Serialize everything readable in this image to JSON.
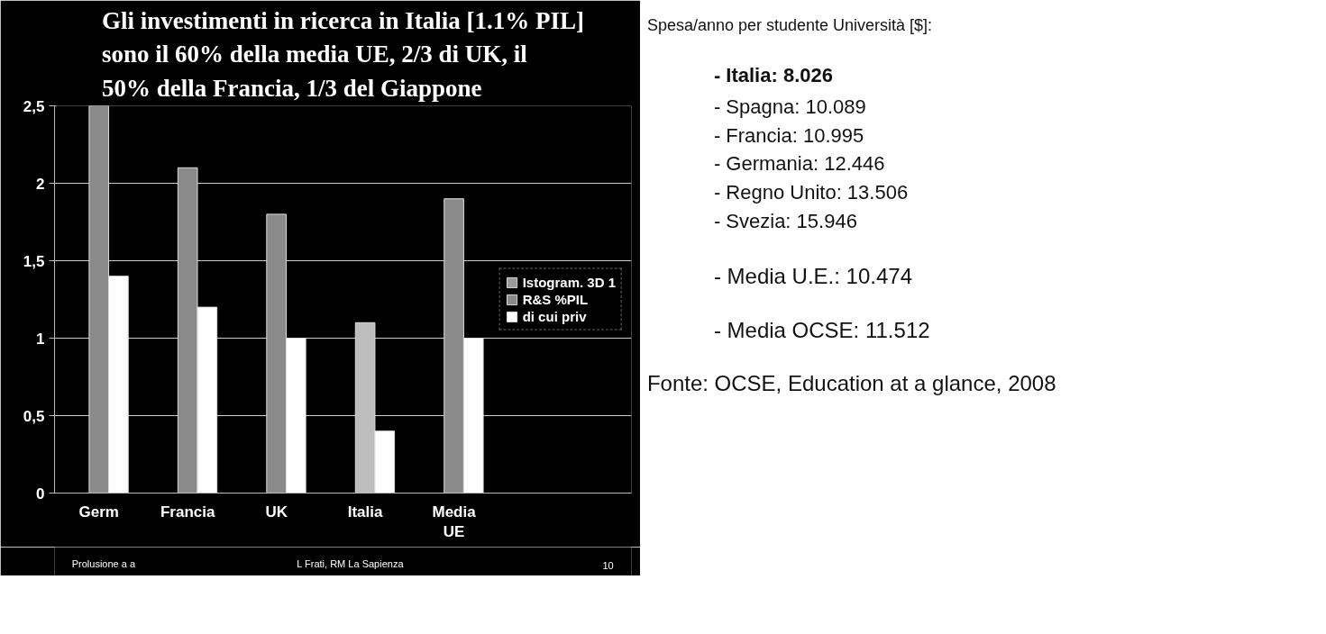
{
  "chart_data": [
    {
      "type": "bar",
      "title": "Gli investimenti in ricerca in Italia [1.1% PIL]\nsono il 60% della media UE, 2/3 di UK, il\n50% della Francia, 1/3 del Giappone",
      "categories": [
        "Germ",
        "Francia",
        "UK",
        "Italia",
        "Media\nUE"
      ],
      "series": [
        {
          "name": "Istogram. 3D 1",
          "color": "#9a9a9a",
          "values": [
            null,
            null,
            null,
            null,
            null
          ]
        },
        {
          "name": "R&S %PIL",
          "color": "#8a8a8a",
          "colors": [
            "#8a8a8a",
            "#8a8a8a",
            "#8a8a8a",
            "#bdbdbd",
            "#8a8a8a"
          ],
          "values": [
            2.5,
            2.1,
            1.8,
            1.1,
            1.9
          ]
        },
        {
          "name": "di cui priv",
          "color": "#ffffff",
          "values": [
            1.4,
            1.2,
            1.0,
            0.4,
            1.0
          ]
        }
      ],
      "ylim": [
        0,
        2.5
      ],
      "yticks": [
        {
          "value": 0,
          "label": "0"
        },
        {
          "value": 0.5,
          "label": "0,5"
        },
        {
          "value": 1,
          "label": "1"
        },
        {
          "value": 1.5,
          "label": "1,5"
        },
        {
          "value": 2,
          "label": "2"
        },
        {
          "value": 2.5,
          "label": "2,5"
        }
      ],
      "grid": "y",
      "legend": "right",
      "annotations": [
        "Prolusione a a",
        "L Frati, RM La Sapienza",
        "10"
      ]
    },
    {
      "type": "other",
      "title": "Spesa/anno per studente Università [$]:",
      "annotations": [
        "-      Italia: 8.026",
        "-      Spagna: 10.089",
        "-      Francia: 10.995",
        "-      Germania: 12.446",
        "-      Regno Unito: 13.506",
        "-      Svezia: 15.946",
        "-      Media U.E.: 10.474",
        "-      Media OCSE: 11.512",
        "Fonte: OCSE, Education at a glance, 2008"
      ]
    }
  ]
}
